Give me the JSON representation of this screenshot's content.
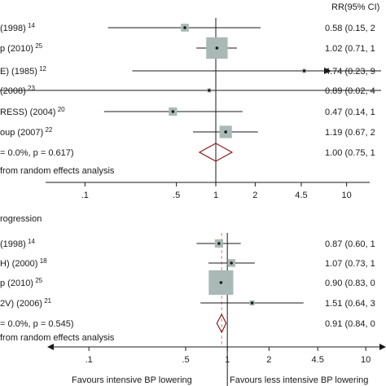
{
  "rr_header": "RR(95% CI)",
  "panels": [
    {
      "section_label": "",
      "scale": {
        "min": 0.05,
        "max": 20
      },
      "null_value": 1,
      "null_line_dashed": false,
      "pooled_diamond_color": "#8b1a1a",
      "footnote": "from random effects analysis",
      "ticks": [
        {
          "value": 0.1,
          "label": ".1"
        },
        {
          "value": 0.5,
          "label": ".5"
        },
        {
          "value": 1,
          "label": "1"
        },
        {
          "value": 2,
          "label": "2"
        },
        {
          "value": 4.5,
          "label": "4.5"
        },
        {
          "value": 10,
          "label": "10"
        }
      ],
      "studies": [
        {
          "label": "(1998)",
          "ref": "14",
          "rr": 0.58,
          "lo": 0.15,
          "hi": 2.2,
          "weight": 0.08,
          "ci_text": "0.58 (0.15, 2"
        },
        {
          "label": "p (2010)",
          "ref": "25",
          "rr": 1.02,
          "lo": 0.71,
          "hi": 1.45,
          "weight": 0.6,
          "ci_text": "1.02 (0.71, 1"
        },
        {
          "label": "E) (1985)",
          "ref": "12",
          "rr": 4.74,
          "lo": 0.23,
          "hi": 95,
          "weight": 0.02,
          "arrow_right": true,
          "ci_text": "4.74 (0.23, 9"
        },
        {
          "label": "(2008)",
          "ref": "23",
          "rr": 0.89,
          "lo": 0.02,
          "hi": 40,
          "weight": 0.01,
          "ci_text": "0.89 (0.02, 4"
        },
        {
          "label": "RESS) (2004)",
          "ref": "20",
          "rr": 0.47,
          "lo": 0.14,
          "hi": 1.6,
          "weight": 0.09,
          "ci_text": "0.47 (0.14, 1"
        },
        {
          "label": "oup (2007)",
          "ref": "22",
          "rr": 1.19,
          "lo": 0.67,
          "hi": 2.1,
          "weight": 0.2,
          "ci_text": "1.19 (0.67, 2"
        }
      ],
      "pooled": {
        "label": "= 0.0%, p = 0.617)",
        "rr": 1.0,
        "lo": 0.75,
        "hi": 1.33,
        "ci_text": "1.00 (0.75, 1"
      }
    },
    {
      "section_label": "rogression",
      "scale": {
        "min": 0.05,
        "max": 14
      },
      "null_value": 1,
      "null_line_dashed": true,
      "pooled_diamond_color": "#8b1a1a",
      "footnote": "from random effects analysis",
      "ticks": [
        {
          "value": 0.1,
          "label": ".1"
        },
        {
          "value": 0.5,
          "label": ".5"
        },
        {
          "value": 1,
          "label": "1"
        },
        {
          "value": 2,
          "label": "2"
        },
        {
          "value": 4.5,
          "label": "4.5"
        },
        {
          "value": 10,
          "label": "10"
        }
      ],
      "studies": [
        {
          "label": "(1998)",
          "ref": "14",
          "rr": 0.87,
          "lo": 0.6,
          "hi": 1.25,
          "weight": 0.08,
          "ci_text": "0.87 (0.60, 1"
        },
        {
          "label": "H) (2000)",
          "ref": "18",
          "rr": 1.07,
          "lo": 0.73,
          "hi": 1.58,
          "weight": 0.07,
          "ci_text": "1.07 (0.73, 1"
        },
        {
          "label": "p (2010)",
          "ref": "25",
          "rr": 0.9,
          "lo": 0.83,
          "hi": 0.97,
          "weight": 0.7,
          "ci_text": "0.90 (0.83, 0"
        },
        {
          "label": "2V) (2006)",
          "ref": "21",
          "rr": 1.51,
          "lo": 0.64,
          "hi": 3.55,
          "weight": 0.03,
          "ci_text": "1.51 (0.64, 3"
        }
      ],
      "pooled": {
        "label": "= 0.0%, p = 0.545)",
        "rr": 0.91,
        "lo": 0.84,
        "hi": 0.98,
        "ci_text": "0.91 (0.84, 0"
      }
    }
  ],
  "favours_left": "Favours intensive BP lowering",
  "favours_right": "Favours less intensive BP lowering",
  "box_color": "#a9b9b5",
  "line_color": "#1a1a1a",
  "chart_data": [
    {
      "type": "forest",
      "ylabel": "",
      "xlabel": "",
      "x_scale": "log",
      "series": [
        {
          "categories": [
            "(1998)",
            "p (2010)",
            "E) (1985)",
            "(2008)",
            "RESS) (2004)",
            "oup (2007)",
            "= 0.0%, p = 0.617)"
          ],
          "rr": [
            0.58,
            1.02,
            4.74,
            0.89,
            0.47,
            1.19,
            1.0
          ],
          "ci_low": [
            0.15,
            0.71,
            0.23,
            0.02,
            0.14,
            0.67,
            0.75
          ]
        }
      ],
      "x_ticks": [
        0.1,
        0.5,
        1,
        2,
        4.5,
        10
      ]
    },
    {
      "type": "forest",
      "ylabel": "",
      "xlabel": "",
      "x_scale": "log",
      "series": [
        {
          "categories": [
            "(1998)",
            "H) (2000)",
            "p (2010)",
            "2V) (2006)",
            "= 0.0%, p = 0.545)"
          ],
          "rr": [
            0.87,
            1.07,
            0.9,
            1.51,
            0.91
          ],
          "ci_low": [
            0.6,
            0.73,
            0.83,
            0.64,
            0.84
          ]
        }
      ],
      "x_ticks": [
        0.1,
        0.5,
        1,
        2,
        4.5,
        10
      ]
    }
  ]
}
